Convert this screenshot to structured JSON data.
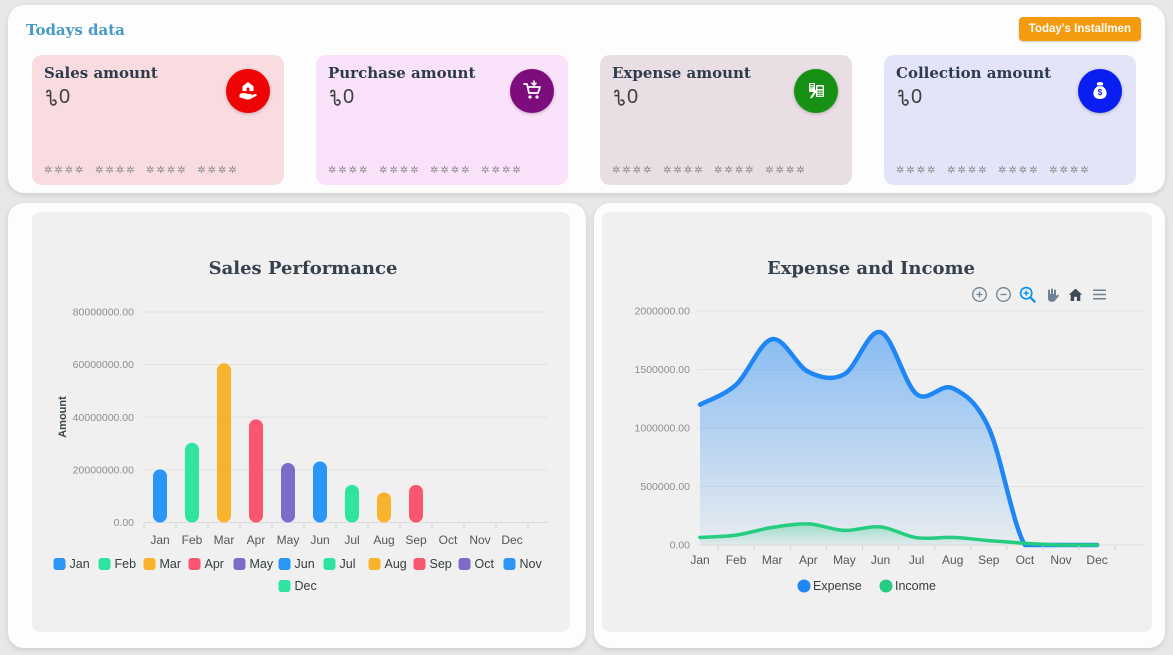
{
  "header": {
    "title": "Todays data",
    "title_color": "#4799c6",
    "button_label": "Today's Installmen",
    "button_color": "#f49b10"
  },
  "cards": [
    {
      "title": "Sales amount",
      "currency": "৳",
      "value": "0",
      "mask": "✲✲✲✲  ✲✲✲✲  ✲✲✲✲  ✲✲✲✲",
      "bg": "#f9dce0",
      "icon": "hand-money-icon",
      "icon_bg": "#ee0405"
    },
    {
      "title": "Purchase amount",
      "currency": "৳",
      "value": "0",
      "mask": "✲✲✲✲  ✲✲✲✲  ✲✲✲✲  ✲✲✲✲",
      "bg": "#fbe2fb",
      "icon": "cart-icon",
      "icon_bg": "#7d0d7d"
    },
    {
      "title": "Expense amount",
      "currency": "৳",
      "value": "0",
      "mask": "✲✲✲✲  ✲✲✲✲  ✲✲✲✲  ✲✲✲✲",
      "bg": "#e9dee4",
      "icon": "receipt-calculator-icon",
      "icon_bg": "#169116"
    },
    {
      "title": "Collection amount",
      "currency": "৳",
      "value": "0",
      "mask": "✲✲✲✲  ✲✲✲✲  ✲✲✲✲  ✲✲✲✲",
      "bg": "#e4e4f8",
      "icon": "money-bag-icon",
      "icon_bg": "#0b1ef2"
    }
  ],
  "chart_data": [
    {
      "type": "bar",
      "title": "Sales Performance",
      "xlabel": "",
      "ylabel": "Amount",
      "categories": [
        "Jan",
        "Feb",
        "Mar",
        "Apr",
        "May",
        "Jun",
        "Jul",
        "Aug",
        "Sep",
        "Oct",
        "Nov",
        "Dec"
      ],
      "values": [
        20200000,
        30300000,
        60500000,
        39200000,
        22600000,
        23200000,
        14300000,
        11400000,
        14300000,
        0,
        0,
        0
      ],
      "palette": [
        "#2a96f5",
        "#2fe3a0",
        "#f8b22c",
        "#fb5671",
        "#7e6bc9"
      ],
      "ylim": [
        0,
        80000000
      ],
      "ytick_labels": [
        "80000000.00",
        "60000000.00",
        "40000000.00",
        "20000000.00",
        "0.00"
      ],
      "grid": true,
      "legend_position": "bottom",
      "legend_row_split": 11
    },
    {
      "type": "area",
      "title": "Expense and Income",
      "xlabel": "",
      "ylabel": "",
      "categories": [
        "Jan",
        "Feb",
        "Mar",
        "Apr",
        "May",
        "Jun",
        "Jul",
        "Aug",
        "Sep",
        "Oct",
        "Nov",
        "Dec"
      ],
      "series": [
        {
          "name": "Expense",
          "color": "#1e87f5",
          "values": [
            1200000,
            1370000,
            1760000,
            1480000,
            1460000,
            1820000,
            1290000,
            1340000,
            1000000,
            0,
            0,
            0
          ]
        },
        {
          "name": "Income",
          "color": "#26cd80",
          "values": [
            65000,
            85000,
            150000,
            180000,
            125000,
            155000,
            62000,
            65000,
            38000,
            15000,
            0,
            0
          ]
        }
      ],
      "ylim": [
        0,
        2000000
      ],
      "ytick_labels": [
        "2000000.00",
        "1500000.00",
        "1000000.00",
        "500000.00",
        "0.00"
      ],
      "grid": true,
      "legend_position": "bottom",
      "toolbar": [
        "zoom-in",
        "zoom-out",
        "selection-zoom",
        "pan",
        "reset-home",
        "menu"
      ]
    }
  ]
}
